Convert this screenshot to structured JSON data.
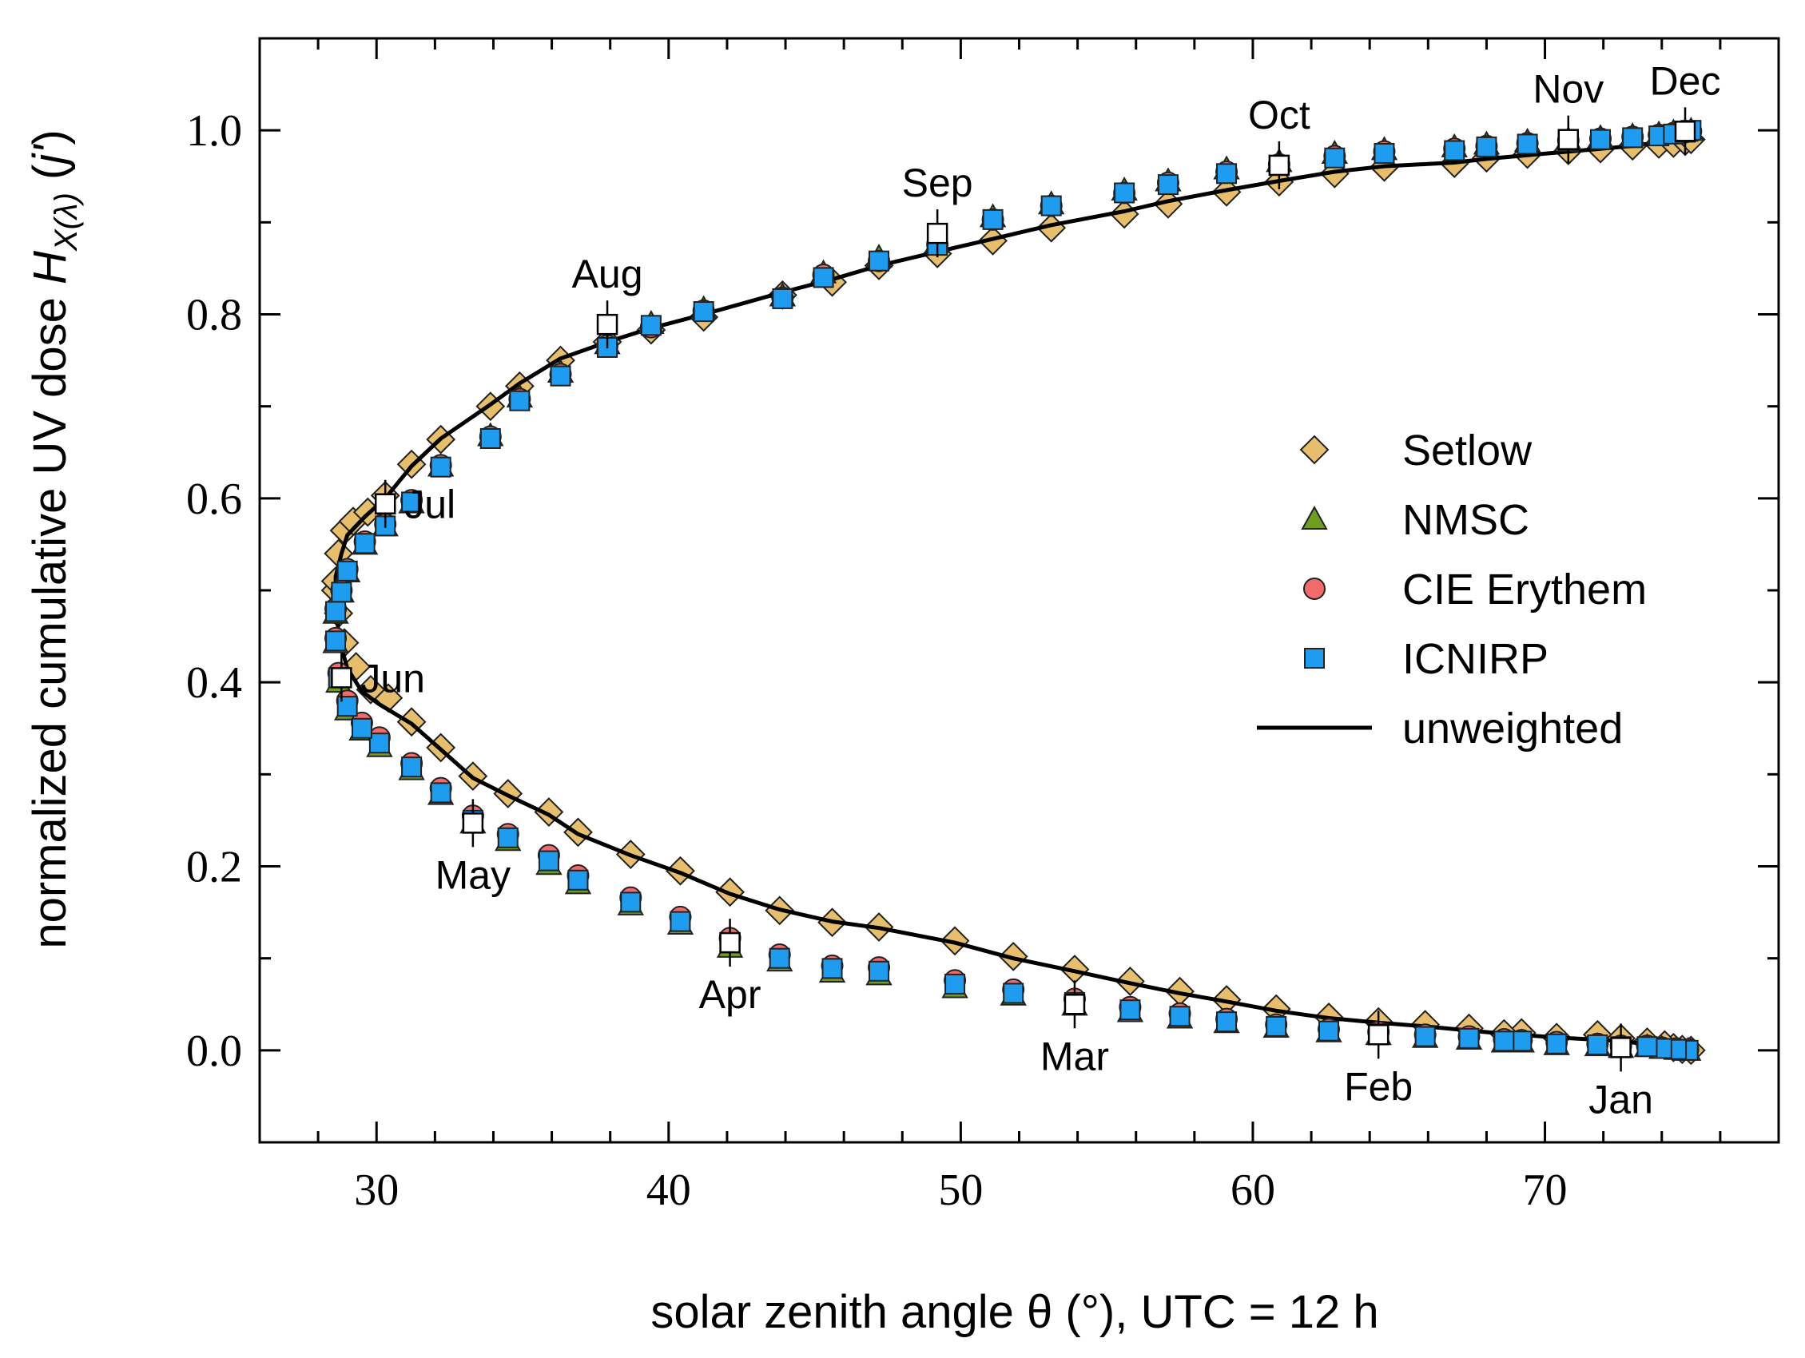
{
  "chart_data": {
    "type": "scatter",
    "title": "",
    "xlabel": "solar zenith angle θ (°), UTC = 12 h",
    "ylabel": {
      "prefix": "normalized cumulative UV dose ",
      "symbol": "H",
      "subscript": "X(λ)",
      "suffix_open": " (",
      "argument": "j'",
      "suffix_close": ")"
    },
    "xlim": [
      26,
      78
    ],
    "ylim": [
      -0.1,
      1.1
    ],
    "xticks": [
      30,
      40,
      50,
      60,
      70
    ],
    "xtick_labels": [
      "30",
      "40",
      "50",
      "60",
      "70"
    ],
    "yticks": [
      0.0,
      0.2,
      0.4,
      0.6,
      0.8,
      1.0
    ],
    "ytick_labels": [
      "0.0",
      "0.2",
      "0.4",
      "0.6",
      "0.8",
      "1.0"
    ],
    "grid": false,
    "legend_position": "right",
    "colors": {
      "setlow": "#E7BE6B",
      "nmsc": "#6E9E1E",
      "cie": "#F26B6B",
      "icnirp": "#1E9CF0",
      "unweighted": "#000000",
      "month_marker": "#ffffff"
    },
    "series": [
      {
        "name": "Setlow",
        "marker": "diamond",
        "x": [
          75.0,
          74.7,
          74.4,
          74.1,
          73.5,
          72.6,
          71.8,
          70.4,
          69.2,
          68.6,
          67.4,
          65.9,
          64.3,
          62.6,
          60.8,
          59.1,
          57.5,
          55.8,
          53.9,
          51.8,
          49.8,
          47.2,
          45.6,
          43.8,
          42.1,
          40.4,
          38.7,
          36.9,
          35.9,
          34.5,
          33.3,
          32.2,
          31.2,
          30.4,
          29.8,
          29.3,
          28.9,
          28.7,
          28.6,
          28.6,
          28.7,
          28.9,
          29.2,
          29.7,
          30.3,
          31.2,
          32.2,
          33.9,
          34.9,
          36.3,
          37.9,
          39.4,
          41.2,
          43.9,
          45.6,
          47.2,
          49.2,
          51.1,
          53.1,
          55.6,
          57.1,
          59.1,
          60.9,
          62.8,
          64.5,
          66.9,
          68.0,
          69.4,
          70.8,
          71.9,
          73.0,
          73.9,
          74.4,
          74.8,
          75.0
        ],
        "y": [
          0.0,
          0.001,
          0.003,
          0.006,
          0.009,
          0.013,
          0.017,
          0.014,
          0.019,
          0.018,
          0.024,
          0.028,
          0.031,
          0.036,
          0.045,
          0.055,
          0.064,
          0.075,
          0.088,
          0.102,
          0.119,
          0.134,
          0.139,
          0.152,
          0.172,
          0.195,
          0.213,
          0.237,
          0.259,
          0.279,
          0.298,
          0.329,
          0.357,
          0.383,
          0.392,
          0.417,
          0.443,
          0.475,
          0.5,
          0.51,
          0.54,
          0.565,
          0.575,
          0.585,
          0.603,
          0.637,
          0.664,
          0.7,
          0.722,
          0.75,
          0.77,
          0.783,
          0.797,
          0.821,
          0.835,
          0.853,
          0.866,
          0.88,
          0.894,
          0.909,
          0.92,
          0.933,
          0.944,
          0.953,
          0.96,
          0.964,
          0.97,
          0.974,
          0.978,
          0.98,
          0.983,
          0.985,
          0.986,
          0.988,
          0.99
        ]
      },
      {
        "name": "NMSC",
        "marker": "triangle",
        "x": [
          74.9,
          74.5,
          74.0,
          73.5,
          72.6,
          71.8,
          70.4,
          69.2,
          68.6,
          67.4,
          65.9,
          64.3,
          62.6,
          60.8,
          59.1,
          57.5,
          55.8,
          53.9,
          51.8,
          49.8,
          47.2,
          45.6,
          43.8,
          42.1,
          40.4,
          38.7,
          36.9,
          35.9,
          34.5,
          33.3,
          32.2,
          31.2,
          30.1,
          29.5,
          29.0,
          28.7,
          28.6,
          28.6,
          28.8,
          29.0,
          29.6,
          30.3,
          31.2,
          32.2,
          33.9,
          34.9,
          36.3,
          37.9,
          39.4,
          41.2,
          43.9,
          45.3,
          47.2,
          49.2,
          51.1,
          53.1,
          55.6,
          57.1,
          59.1,
          60.9,
          62.8,
          64.5,
          66.9,
          68.0,
          69.4,
          70.8,
          71.9,
          73.0,
          73.9,
          74.4,
          74.8,
          75.0
        ],
        "y": [
          0.0,
          0.001,
          0.002,
          0.004,
          0.003,
          0.005,
          0.006,
          0.009,
          0.009,
          0.012,
          0.014,
          0.017,
          0.02,
          0.025,
          0.03,
          0.035,
          0.042,
          0.049,
          0.06,
          0.068,
          0.082,
          0.085,
          0.097,
          0.112,
          0.137,
          0.158,
          0.181,
          0.202,
          0.228,
          0.247,
          0.278,
          0.305,
          0.33,
          0.348,
          0.37,
          0.4,
          0.443,
          0.475,
          0.498,
          0.52,
          0.55,
          0.57,
          0.595,
          0.635,
          0.668,
          0.71,
          0.737,
          0.768,
          0.79,
          0.806,
          0.82,
          0.845,
          0.862,
          0.878,
          0.906,
          0.92,
          0.935,
          0.945,
          0.958,
          0.966,
          0.975,
          0.979,
          0.982,
          0.985,
          0.988,
          0.99,
          0.992,
          0.994,
          0.996,
          0.998,
          0.999,
          1.0
        ]
      },
      {
        "name": "CIE Erythem",
        "marker": "circle",
        "x": [
          74.9,
          74.5,
          74.0,
          73.5,
          72.6,
          71.8,
          70.4,
          69.2,
          68.6,
          67.4,
          65.9,
          64.3,
          62.6,
          60.8,
          59.1,
          57.5,
          55.8,
          53.9,
          51.8,
          49.8,
          47.2,
          45.6,
          43.8,
          42.1,
          40.4,
          38.7,
          36.9,
          35.9,
          34.5,
          33.3,
          32.2,
          31.2,
          30.1,
          29.5,
          29.0,
          28.7,
          28.6,
          28.6,
          28.8,
          29.0,
          29.6,
          30.3,
          31.2,
          32.2,
          33.9,
          34.9,
          36.3,
          37.9,
          39.4,
          41.2,
          43.9,
          45.3,
          47.2,
          49.2,
          51.1,
          53.1,
          55.6,
          57.1,
          59.1,
          60.9,
          62.8,
          64.5,
          66.9,
          68.0,
          69.4,
          70.8,
          71.9,
          73.0,
          73.9,
          74.4,
          74.8,
          75.0
        ],
        "y": [
          0.001,
          0.002,
          0.003,
          0.005,
          0.005,
          0.007,
          0.009,
          0.011,
          0.012,
          0.015,
          0.017,
          0.02,
          0.023,
          0.028,
          0.034,
          0.04,
          0.047,
          0.056,
          0.066,
          0.076,
          0.09,
          0.092,
          0.104,
          0.122,
          0.145,
          0.166,
          0.19,
          0.212,
          0.235,
          0.255,
          0.285,
          0.312,
          0.34,
          0.356,
          0.38,
          0.41,
          0.448,
          0.48,
          0.5,
          0.523,
          0.553,
          0.572,
          0.598,
          0.636,
          0.667,
          0.708,
          0.735,
          0.766,
          0.786,
          0.804,
          0.818,
          0.843,
          0.858,
          0.876,
          0.903,
          0.918,
          0.932,
          0.943,
          0.955,
          0.963,
          0.972,
          0.977,
          0.98,
          0.983,
          0.986,
          0.989,
          0.991,
          0.993,
          0.995,
          0.997,
          0.998,
          0.999
        ]
      },
      {
        "name": "ICNIRP",
        "marker": "square",
        "x": [
          74.9,
          74.5,
          74.0,
          73.5,
          72.6,
          71.8,
          70.4,
          69.2,
          68.6,
          67.4,
          65.9,
          64.3,
          62.6,
          60.8,
          59.1,
          57.5,
          55.8,
          53.9,
          51.8,
          49.8,
          47.2,
          45.6,
          43.8,
          42.1,
          40.4,
          38.7,
          36.9,
          35.9,
          34.5,
          33.3,
          32.2,
          31.2,
          30.1,
          29.5,
          29.0,
          28.7,
          28.6,
          28.6,
          28.8,
          29.0,
          29.6,
          30.3,
          31.2,
          32.2,
          33.9,
          34.9,
          36.3,
          37.9,
          39.4,
          41.2,
          43.9,
          45.3,
          47.2,
          49.2,
          51.1,
          53.1,
          55.6,
          57.1,
          59.1,
          60.9,
          62.8,
          64.5,
          66.9,
          68.0,
          69.4,
          70.8,
          71.9,
          73.0,
          73.9,
          74.4,
          74.8,
          75.0
        ],
        "y": [
          0.0,
          0.001,
          0.002,
          0.004,
          0.004,
          0.006,
          0.007,
          0.01,
          0.01,
          0.013,
          0.015,
          0.018,
          0.021,
          0.026,
          0.031,
          0.037,
          0.044,
          0.052,
          0.062,
          0.072,
          0.086,
          0.089,
          0.1,
          0.117,
          0.14,
          0.161,
          0.185,
          0.206,
          0.231,
          0.25,
          0.28,
          0.308,
          0.334,
          0.35,
          0.374,
          0.405,
          0.445,
          0.477,
          0.498,
          0.521,
          0.551,
          0.57,
          0.596,
          0.634,
          0.665,
          0.706,
          0.733,
          0.764,
          0.788,
          0.803,
          0.817,
          0.84,
          0.858,
          0.875,
          0.903,
          0.918,
          0.932,
          0.941,
          0.953,
          0.962,
          0.97,
          0.975,
          0.978,
          0.982,
          0.985,
          0.988,
          0.99,
          0.992,
          0.994,
          0.996,
          0.998,
          1.0
        ]
      },
      {
        "name": "unweighted",
        "marker": "line",
        "x": [
          75.0,
          74.0,
          72.6,
          70.4,
          68.6,
          65.9,
          64.3,
          62.6,
          60.8,
          59.1,
          57.5,
          55.8,
          53.9,
          51.8,
          49.8,
          47.2,
          45.6,
          43.8,
          42.1,
          40.4,
          38.7,
          36.9,
          35.9,
          34.5,
          33.3,
          32.2,
          31.2,
          30.1,
          29.5,
          29.0,
          28.7,
          28.6,
          28.6,
          28.8,
          29.0,
          29.6,
          30.3,
          31.2,
          32.2,
          33.9,
          34.9,
          36.3,
          37.9,
          39.4,
          41.2,
          43.9,
          45.6,
          47.2,
          49.2,
          51.1,
          53.1,
          55.6,
          57.1,
          59.1,
          60.9,
          62.8,
          64.5,
          66.9,
          68.0,
          69.4,
          70.8,
          71.9,
          73.0,
          73.9,
          75.0
        ],
        "y": [
          0.0,
          0.005,
          0.01,
          0.014,
          0.018,
          0.026,
          0.03,
          0.035,
          0.043,
          0.053,
          0.062,
          0.073,
          0.086,
          0.1,
          0.117,
          0.133,
          0.14,
          0.153,
          0.17,
          0.193,
          0.212,
          0.235,
          0.256,
          0.277,
          0.296,
          0.327,
          0.355,
          0.376,
          0.39,
          0.415,
          0.45,
          0.5,
          0.515,
          0.54,
          0.56,
          0.58,
          0.6,
          0.635,
          0.665,
          0.702,
          0.725,
          0.752,
          0.77,
          0.785,
          0.8,
          0.824,
          0.838,
          0.853,
          0.868,
          0.882,
          0.897,
          0.912,
          0.923,
          0.935,
          0.945,
          0.955,
          0.961,
          0.965,
          0.969,
          0.973,
          0.977,
          0.98,
          0.983,
          0.987,
          0.992
        ]
      }
    ],
    "month_markers": [
      {
        "label": "Jan",
        "x": 72.6,
        "y": 0.003,
        "label_pos": "below"
      },
      {
        "label": "Feb",
        "x": 64.3,
        "y": 0.017,
        "label_pos": "below"
      },
      {
        "label": "Mar",
        "x": 53.9,
        "y": 0.05,
        "label_pos": "below"
      },
      {
        "label": "Apr",
        "x": 42.1,
        "y": 0.117,
        "label_pos": "below"
      },
      {
        "label": "May",
        "x": 33.3,
        "y": 0.247,
        "label_pos": "below"
      },
      {
        "label": "Jun",
        "x": 28.8,
        "y": 0.405,
        "label_pos": "right"
      },
      {
        "label": "Jul",
        "x": 30.3,
        "y": 0.594,
        "label_pos": "right"
      },
      {
        "label": "Aug",
        "x": 37.9,
        "y": 0.789,
        "label_pos": "above"
      },
      {
        "label": "Sep",
        "x": 49.2,
        "y": 0.888,
        "label_pos": "above"
      },
      {
        "label": "Oct",
        "x": 60.9,
        "y": 0.962,
        "label_pos": "above"
      },
      {
        "label": "Nov",
        "x": 70.8,
        "y": 0.99,
        "label_pos": "above"
      },
      {
        "label": "Dec",
        "x": 74.8,
        "y": 0.999,
        "label_pos": "above"
      }
    ],
    "legend": [
      {
        "name": "Setlow",
        "marker": "diamond"
      },
      {
        "name": "NMSC",
        "marker": "triangle"
      },
      {
        "name": "CIE Erythem",
        "marker": "circle"
      },
      {
        "name": "ICNIRP",
        "marker": "square"
      },
      {
        "name": "unweighted",
        "marker": "line"
      }
    ]
  }
}
